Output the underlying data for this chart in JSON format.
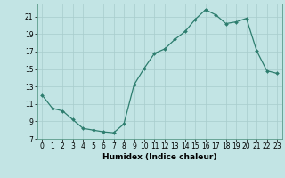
{
  "x": [
    0,
    1,
    2,
    3,
    4,
    5,
    6,
    7,
    8,
    9,
    10,
    11,
    12,
    13,
    14,
    15,
    16,
    17,
    18,
    19,
    20,
    21,
    22,
    23
  ],
  "y": [
    12,
    10.5,
    10.2,
    9.2,
    8.2,
    8.0,
    7.8,
    7.7,
    8.7,
    13.2,
    15.1,
    16.8,
    17.3,
    18.4,
    19.3,
    20.7,
    21.8,
    21.2,
    20.2,
    20.4,
    20.8,
    17.1,
    14.8,
    14.5
  ],
  "line_color": "#2d7d6e",
  "bg_color": "#c2e4e4",
  "grid_color": "#a8cccc",
  "xlabel": "Humidex (Indice chaleur)",
  "xlim": [
    -0.5,
    23.5
  ],
  "ylim": [
    7,
    22.5
  ],
  "yticks": [
    7,
    9,
    11,
    13,
    15,
    17,
    19,
    21
  ],
  "xticks": [
    0,
    1,
    2,
    3,
    4,
    5,
    6,
    7,
    8,
    9,
    10,
    11,
    12,
    13,
    14,
    15,
    16,
    17,
    18,
    19,
    20,
    21,
    22,
    23
  ],
  "label_fontsize": 6.5,
  "tick_fontsize": 5.5
}
